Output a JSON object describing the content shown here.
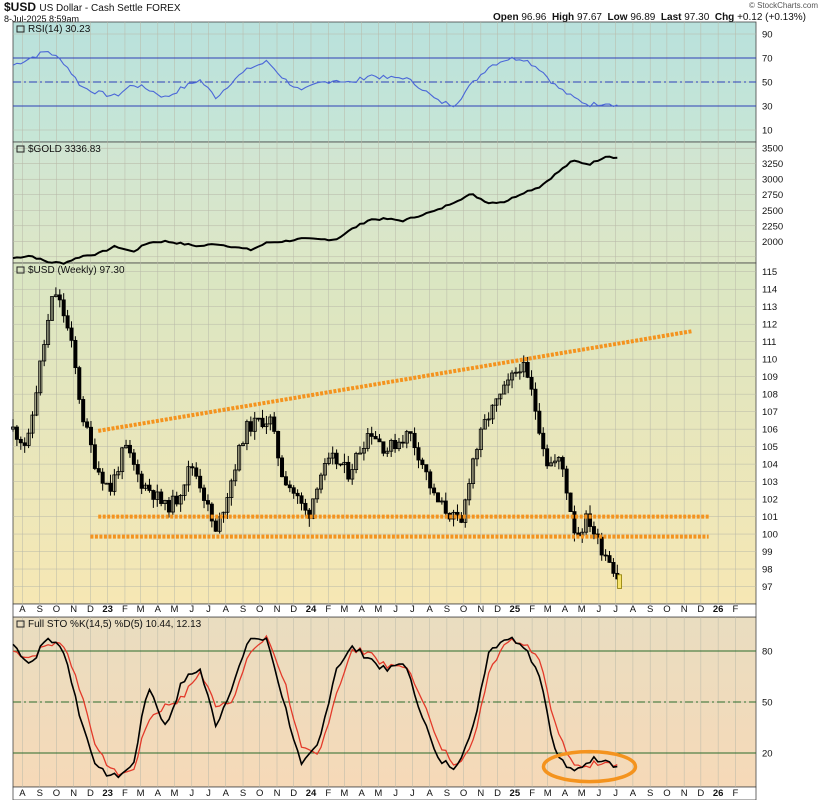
{
  "header": {
    "symbol": "$USD",
    "name": "US Dollar - Cash Settle",
    "exchange": "FOREX",
    "date": "8-Jul-2025 8:59am",
    "open_label": "Open",
    "open": "96.96",
    "high_label": "High",
    "high": "97.67",
    "low_label": "Low",
    "low": "96.89",
    "last_label": "Last",
    "last": "97.30",
    "chg_label": "Chg",
    "chg": "+0.12 (+0.13%)",
    "credit": "© StockCharts.com"
  },
  "colors": {
    "rsi_bg": "#bfe3dc",
    "gold_bg": "#dfe7c4",
    "price_bg_top": "#d9e6c3",
    "price_bg_bottom": "#f6e7b4",
    "sto_bg_top": "#e9ddc0",
    "sto_bg_bottom": "#f6d9b8",
    "rsi_line": "#4b67d8",
    "ref_line": "#2e3fb6",
    "sto_ref": "#2b6b2b",
    "trend": "#f4931e",
    "k_line": "#000000",
    "d_line": "#e33a2a",
    "candle": "#000000"
  },
  "chart_data": [
    {
      "type": "line",
      "title": "RSI(14) 30.23",
      "yticks": [
        10,
        30,
        50,
        70,
        90
      ],
      "ylim": [
        0,
        100
      ],
      "reference_lines": [
        30,
        50,
        70
      ],
      "x_range": [
        "2022-07-15",
        "2026-03-10"
      ],
      "series": [
        {
          "name": "RSI(14)",
          "x": [
            "2022-07-15",
            "2022-08-15",
            "2022-09-15",
            "2022-10-15",
            "2022-11-15",
            "2022-12-15",
            "2023-01-15",
            "2023-02-15",
            "2023-03-15",
            "2023-04-15",
            "2023-05-15",
            "2023-06-15",
            "2023-07-15",
            "2023-08-15",
            "2023-09-15",
            "2023-10-15",
            "2023-11-15",
            "2023-12-15",
            "2024-01-15",
            "2024-02-15",
            "2024-03-15",
            "2024-04-15",
            "2024-05-15",
            "2024-06-15",
            "2024-07-15",
            "2024-08-15",
            "2024-09-15",
            "2024-10-15",
            "2024-11-15",
            "2024-12-15",
            "2025-01-15",
            "2025-02-15",
            "2025-03-15",
            "2025-04-15",
            "2025-05-15",
            "2025-06-15",
            "2025-07-08"
          ],
          "values": [
            64,
            70,
            76,
            66,
            46,
            41,
            38,
            48,
            44,
            37,
            45,
            52,
            37,
            52,
            62,
            67,
            52,
            42,
            49,
            52,
            49,
            56,
            53,
            54,
            46,
            34,
            31,
            48,
            63,
            69,
            70,
            61,
            47,
            37,
            31,
            33,
            30
          ]
        }
      ]
    },
    {
      "type": "line",
      "title": "$GOLD 3336.83",
      "yticks": [
        2000,
        2250,
        2500,
        2750,
        3000,
        3250,
        3500
      ],
      "y_tick_labels": [
        "2000",
        "2250",
        "2500",
        "2750",
        "3000",
        "3250",
        "3500"
      ],
      "minor_ticks": [
        1750,
        2000,
        2250,
        2500,
        2750,
        3000,
        3250,
        3500
      ],
      "ylim": [
        1650,
        3600
      ],
      "x_range": [
        "2022-07-15",
        "2026-03-10"
      ],
      "series": [
        {
          "name": "$GOLD",
          "x": [
            "2022-07-15",
            "2022-08-15",
            "2022-09-15",
            "2022-10-15",
            "2022-11-15",
            "2022-12-15",
            "2023-01-15",
            "2023-02-15",
            "2023-03-15",
            "2023-04-15",
            "2023-05-15",
            "2023-06-15",
            "2023-07-15",
            "2023-08-15",
            "2023-09-15",
            "2023-10-15",
            "2023-11-15",
            "2023-12-15",
            "2024-01-15",
            "2024-02-15",
            "2024-03-15",
            "2024-04-15",
            "2024-05-15",
            "2024-06-15",
            "2024-07-15",
            "2024-08-15",
            "2024-09-15",
            "2024-10-15",
            "2024-11-15",
            "2024-12-15",
            "2025-01-15",
            "2025-02-15",
            "2025-03-15",
            "2025-04-15",
            "2025-05-15",
            "2025-06-15",
            "2025-07-08"
          ],
          "values": [
            1730,
            1770,
            1665,
            1650,
            1760,
            1800,
            1920,
            1830,
            1980,
            2000,
            1960,
            1920,
            1960,
            1910,
            1860,
            1980,
            2000,
            2040,
            2030,
            2030,
            2200,
            2350,
            2360,
            2330,
            2420,
            2500,
            2640,
            2760,
            2620,
            2640,
            2780,
            2880,
            3080,
            3300,
            3240,
            3380,
            3336
          ]
        }
      ]
    },
    {
      "type": "candlestick",
      "title": "$USD (Weekly) 97.30",
      "yticks": [
        97,
        98,
        99,
        100,
        101,
        102,
        103,
        104,
        105,
        106,
        107,
        108,
        109,
        110,
        111,
        112,
        113,
        114,
        115
      ],
      "ylim": [
        96,
        115.5
      ],
      "x_range": [
        "2022-07-15",
        "2026-03-10"
      ],
      "close_path": {
        "x": [
          "2022-07-15",
          "2022-08-10",
          "2022-09-01",
          "2022-09-27",
          "2022-10-15",
          "2022-10-30",
          "2022-11-15",
          "2022-12-10",
          "2023-01-05",
          "2023-02-01",
          "2023-03-01",
          "2023-03-20",
          "2023-04-15",
          "2023-05-05",
          "2023-05-31",
          "2023-06-15",
          "2023-07-14",
          "2023-08-10",
          "2023-09-05",
          "2023-10-03",
          "2023-10-20",
          "2023-11-10",
          "2023-12-27",
          "2024-01-15",
          "2024-02-10",
          "2024-03-08",
          "2024-04-16",
          "2024-05-15",
          "2024-06-26",
          "2024-07-20",
          "2024-08-10",
          "2024-09-27",
          "2024-10-15",
          "2024-11-10",
          "2025-01-13",
          "2025-02-01",
          "2025-03-01",
          "2025-03-25",
          "2025-04-21",
          "2025-05-12",
          "2025-06-01",
          "2025-06-20",
          "2025-07-08"
        ],
        "values": [
          106.0,
          105.0,
          109.5,
          114.0,
          112.5,
          110.5,
          107.0,
          104.0,
          102.5,
          105.0,
          103.0,
          102.5,
          101.5,
          102.0,
          104.0,
          103.0,
          100.0,
          103.0,
          106.0,
          106.5,
          106.5,
          103.5,
          101.0,
          103.3,
          104.3,
          103.5,
          106.0,
          104.8,
          105.8,
          104.0,
          102.0,
          100.5,
          104.0,
          106.5,
          109.8,
          108.0,
          104.0,
          104.2,
          99.8,
          101.0,
          99.4,
          98.6,
          97.3
        ]
      },
      "trend_lines": [
        {
          "name": "rising resistance",
          "from": [
            "2022-12-15",
            105.9
          ],
          "to": [
            "2025-11-15",
            111.6
          ]
        },
        {
          "name": "support upper",
          "from": [
            "2022-12-15",
            101.0
          ],
          "to": [
            "2025-12-15",
            101.0
          ]
        },
        {
          "name": "support lower",
          "from": [
            "2022-12-01",
            99.85
          ],
          "to": [
            "2025-12-15",
            99.85
          ]
        }
      ]
    },
    {
      "type": "line",
      "title": "Full STO %K(14,5) %D(5) 10.44, 12.13",
      "yticks": [
        20,
        50,
        80
      ],
      "ylim": [
        0,
        100
      ],
      "reference_lines": [
        20,
        50,
        80
      ],
      "x_range": [
        "2022-07-15",
        "2026-03-10"
      ],
      "series": [
        {
          "name": "%K(14,5)",
          "x": [
            "2022-07-15",
            "2022-08-15",
            "2022-09-15",
            "2022-10-15",
            "2022-11-15",
            "2022-12-15",
            "2023-01-15",
            "2023-02-15",
            "2023-03-15",
            "2023-04-15",
            "2023-05-15",
            "2023-06-15",
            "2023-07-15",
            "2023-08-15",
            "2023-09-15",
            "2023-10-15",
            "2023-11-15",
            "2023-12-15",
            "2024-01-15",
            "2024-02-15",
            "2024-03-15",
            "2024-04-15",
            "2024-05-15",
            "2024-06-15",
            "2024-07-15",
            "2024-08-15",
            "2024-09-15",
            "2024-10-15",
            "2024-11-15",
            "2024-12-15",
            "2025-01-15",
            "2025-02-15",
            "2025-03-15",
            "2025-04-15",
            "2025-05-15",
            "2025-06-15",
            "2025-07-08"
          ],
          "values": [
            84,
            72,
            88,
            80,
            38,
            10,
            6,
            12,
            60,
            35,
            62,
            70,
            36,
            62,
            88,
            86,
            48,
            12,
            25,
            70,
            82,
            76,
            68,
            74,
            46,
            16,
            12,
            30,
            80,
            88,
            85,
            66,
            20,
            8,
            16,
            17,
            10.44
          ]
        },
        {
          "name": "%D(5)",
          "x": [
            "2022-07-15",
            "2022-08-15",
            "2022-09-15",
            "2022-10-15",
            "2022-11-15",
            "2022-12-15",
            "2023-01-15",
            "2023-02-15",
            "2023-03-15",
            "2023-04-15",
            "2023-05-15",
            "2023-06-15",
            "2023-07-15",
            "2023-08-15",
            "2023-09-15",
            "2023-10-15",
            "2023-11-15",
            "2023-12-15",
            "2024-01-15",
            "2024-02-15",
            "2024-03-15",
            "2024-04-15",
            "2024-05-15",
            "2024-06-15",
            "2024-07-15",
            "2024-08-15",
            "2024-09-15",
            "2024-10-15",
            "2024-11-15",
            "2024-12-15",
            "2025-01-15",
            "2025-02-15",
            "2025-03-15",
            "2025-04-15",
            "2025-05-15",
            "2025-06-15",
            "2025-07-08"
          ],
          "values": [
            80,
            76,
            84,
            84,
            55,
            20,
            8,
            9,
            40,
            48,
            52,
            68,
            48,
            52,
            80,
            88,
            62,
            22,
            18,
            55,
            80,
            80,
            70,
            72,
            56,
            26,
            14,
            22,
            68,
            86,
            86,
            76,
            36,
            12,
            13,
            16,
            12.13
          ]
        }
      ],
      "highlight": {
        "shape": "ellipse",
        "center": [
          "2025-05-15",
          12
        ]
      }
    }
  ],
  "x_axis": {
    "labels": [
      {
        "date": "2022-08-01",
        "text": "A"
      },
      {
        "date": "2022-09-01",
        "text": "S"
      },
      {
        "date": "2022-10-01",
        "text": "O"
      },
      {
        "date": "2022-11-01",
        "text": "N"
      },
      {
        "date": "2022-12-01",
        "text": "D"
      },
      {
        "date": "2023-01-01",
        "text": "23"
      },
      {
        "date": "2023-02-01",
        "text": "F"
      },
      {
        "date": "2023-03-01",
        "text": "M"
      },
      {
        "date": "2023-04-01",
        "text": "A"
      },
      {
        "date": "2023-05-01",
        "text": "M"
      },
      {
        "date": "2023-06-01",
        "text": "J"
      },
      {
        "date": "2023-07-01",
        "text": "J"
      },
      {
        "date": "2023-08-01",
        "text": "A"
      },
      {
        "date": "2023-09-01",
        "text": "S"
      },
      {
        "date": "2023-10-01",
        "text": "O"
      },
      {
        "date": "2023-11-01",
        "text": "N"
      },
      {
        "date": "2023-12-01",
        "text": "D"
      },
      {
        "date": "2024-01-01",
        "text": "24"
      },
      {
        "date": "2024-02-01",
        "text": "F"
      },
      {
        "date": "2024-03-01",
        "text": "M"
      },
      {
        "date": "2024-04-01",
        "text": "A"
      },
      {
        "date": "2024-05-01",
        "text": "M"
      },
      {
        "date": "2024-06-01",
        "text": "J"
      },
      {
        "date": "2024-07-01",
        "text": "J"
      },
      {
        "date": "2024-08-01",
        "text": "A"
      },
      {
        "date": "2024-09-01",
        "text": "S"
      },
      {
        "date": "2024-10-01",
        "text": "O"
      },
      {
        "date": "2024-11-01",
        "text": "N"
      },
      {
        "date": "2024-12-01",
        "text": "D"
      },
      {
        "date": "2025-01-01",
        "text": "25"
      },
      {
        "date": "2025-02-01",
        "text": "F"
      },
      {
        "date": "2025-03-01",
        "text": "M"
      },
      {
        "date": "2025-04-01",
        "text": "A"
      },
      {
        "date": "2025-05-01",
        "text": "M"
      },
      {
        "date": "2025-06-01",
        "text": "J"
      },
      {
        "date": "2025-07-01",
        "text": "J"
      },
      {
        "date": "2025-08-01",
        "text": "A"
      },
      {
        "date": "2025-09-01",
        "text": "S"
      },
      {
        "date": "2025-10-01",
        "text": "O"
      },
      {
        "date": "2025-11-01",
        "text": "N"
      },
      {
        "date": "2025-12-01",
        "text": "D"
      },
      {
        "date": "2026-01-01",
        "text": "26"
      },
      {
        "date": "2026-02-01",
        "text": "F"
      }
    ],
    "bold": [
      "23",
      "24",
      "25",
      "26"
    ]
  }
}
